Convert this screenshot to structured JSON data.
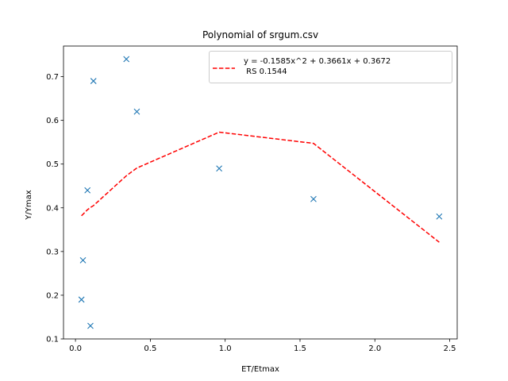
{
  "chart_data": {
    "type": "scatter",
    "title": "Polynomial of srgum.csv",
    "xlabel": "ET/Etmax",
    "ylabel": "Y/Ymax",
    "xlim": [
      -0.08,
      2.55
    ],
    "ylim": [
      0.1,
      0.77
    ],
    "xticks": [
      0.0,
      0.5,
      1.0,
      1.5,
      2.0,
      2.5
    ],
    "xtick_labels": [
      "0.0",
      "0.5",
      "1.0",
      "1.5",
      "2.0",
      "2.5"
    ],
    "yticks": [
      0.1,
      0.2,
      0.3,
      0.4,
      0.5,
      0.6,
      0.7
    ],
    "ytick_labels": [
      "0.1",
      "0.2",
      "0.3",
      "0.4",
      "0.5",
      "0.6",
      "0.7"
    ],
    "grid": false,
    "legend_position": "top-right",
    "points": {
      "marker": "x",
      "color": "#1f77b4",
      "x": [
        0.04,
        0.05,
        0.08,
        0.1,
        0.12,
        0.34,
        0.41,
        0.96,
        1.59,
        2.43
      ],
      "y": [
        0.19,
        0.28,
        0.44,
        0.13,
        0.69,
        0.74,
        0.62,
        0.49,
        0.42,
        0.38
      ]
    },
    "series": [
      {
        "name": "y = -0.1585x^2 + 0.3661x + 0.3672\n RS 0.1544",
        "legend_lines": [
          "y = -0.1585x^2 + 0.3661x + 0.3672",
          " RS 0.1544"
        ],
        "style": "dashed",
        "color": "#ff0000",
        "x": [
          0.04,
          0.05,
          0.08,
          0.1,
          0.12,
          0.34,
          0.41,
          0.96,
          1.59,
          2.43
        ],
        "y": [
          0.3818,
          0.3851,
          0.3955,
          0.4007,
          0.4049,
          0.4733,
          0.491,
          0.573,
          0.5474,
          0.3212
        ]
      }
    ]
  }
}
